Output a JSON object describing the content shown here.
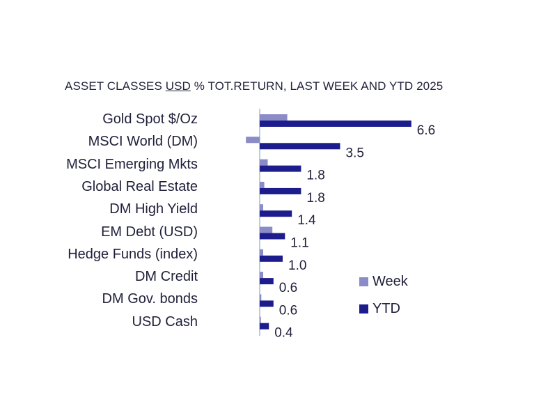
{
  "title": {
    "prefix": "ASSET CLASSES ",
    "currency": "USD",
    "suffix": " % TOT.RETURN, LAST WEEK AND YTD 2025"
  },
  "colors": {
    "week": "#8b8bc8",
    "ytd": "#1c1c8c",
    "axis": "#b9cde3",
    "text": "#1f1f3a"
  },
  "chart_data": {
    "type": "bar",
    "orientation": "horizontal",
    "title": "ASSET CLASSES USD % TOT.RETURN, LAST WEEK AND YTD 2025",
    "categories": [
      "Gold Spot   $/Oz",
      "MSCI World (DM)",
      "MSCI Emerging Mkts",
      "Global Real Estate",
      "DM High Yield",
      "EM Debt (USD)",
      "Hedge Funds (index)",
      "DM Credit",
      "DM Gov. bonds",
      "USD Cash"
    ],
    "series": [
      {
        "name": "Week",
        "values": [
          1.2,
          -0.6,
          0.35,
          0.2,
          0.15,
          0.55,
          0.15,
          0.15,
          0.07,
          0.05
        ]
      },
      {
        "name": "YTD",
        "values": [
          6.6,
          3.5,
          1.8,
          1.8,
          1.4,
          1.1,
          1.0,
          0.6,
          0.6,
          0.4
        ]
      }
    ],
    "data_labels": [
      "6.6",
      "3.5",
      "1.8",
      "1.8",
      "1.4",
      "1.1",
      "1.0",
      "0.6",
      "0.6",
      "0.4"
    ],
    "legend_position": "right",
    "grid": false
  }
}
